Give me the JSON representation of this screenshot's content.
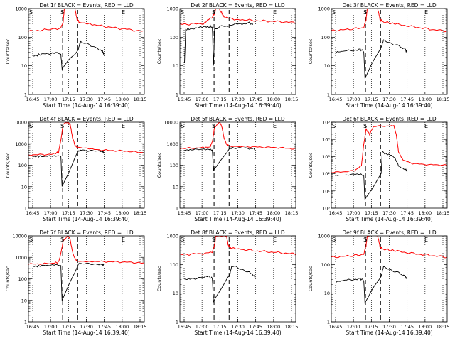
{
  "chart_data": [
    {
      "type": "line",
      "title": "Det 1f BLACK = Events, RED = LLD",
      "ylabel": "Counts/sec",
      "xlabel": "Start Time (14-Aug-14 16:39:40)",
      "y_scale": "log",
      "ylim": [
        1,
        1000
      ],
      "y_ticks": [
        1,
        10,
        100,
        1000
      ],
      "y_tick_labels": [
        "1",
        "10",
        "100",
        "1000"
      ],
      "x_ticks": [
        "16:45",
        "17:00",
        "17:15",
        "17:30",
        "17:45",
        "18:00",
        "18:15"
      ],
      "x_range_minutes": [
        0,
        100
      ],
      "markers": [
        "S",
        "E"
      ],
      "red": [
        [
          0,
          160
        ],
        [
          10,
          175
        ],
        [
          20,
          190
        ],
        [
          28,
          210
        ],
        [
          30,
          350
        ],
        [
          31,
          1000
        ],
        [
          40,
          1000
        ],
        [
          42,
          420
        ],
        [
          44,
          330
        ],
        [
          55,
          280
        ],
        [
          65,
          240
        ],
        [
          75,
          210
        ],
        [
          85,
          190
        ],
        [
          95,
          165
        ],
        [
          100,
          160
        ]
      ],
      "black": [
        [
          4,
          22
        ],
        [
          10,
          25
        ],
        [
          18,
          26
        ],
        [
          25,
          28
        ],
        [
          28,
          25
        ],
        [
          29,
          8
        ],
        [
          43,
          38
        ],
        [
          45,
          70
        ],
        [
          50,
          58
        ],
        [
          55,
          50
        ],
        [
          60,
          40
        ],
        [
          64,
          32
        ],
        [
          65,
          25
        ]
      ]
    },
    {
      "type": "line",
      "title": "Det 2f BLACK = Events, RED = LLD",
      "ylabel": "Counts/sec",
      "xlabel": "Start Time (14-Aug-14 16:39:40)",
      "y_scale": "log",
      "ylim": [
        1,
        1000
      ],
      "y_ticks": [
        1,
        10,
        100,
        1000
      ],
      "y_tick_labels": [
        "1",
        "10",
        "100",
        "1000"
      ],
      "x_ticks": [
        "16:45",
        "17:00",
        "17:15",
        "17:30",
        "17:45",
        "18:00",
        "18:15"
      ],
      "x_range_minutes": [
        0,
        100
      ],
      "markers": [
        "S",
        "E"
      ],
      "red": [
        [
          0,
          280
        ],
        [
          10,
          290
        ],
        [
          20,
          300
        ],
        [
          24,
          380
        ],
        [
          28,
          480
        ],
        [
          30,
          700
        ],
        [
          31,
          1000
        ],
        [
          34,
          1000
        ],
        [
          36,
          700
        ],
        [
          38,
          520
        ],
        [
          42,
          450
        ],
        [
          50,
          420
        ],
        [
          60,
          390
        ],
        [
          70,
          370
        ],
        [
          80,
          360
        ],
        [
          90,
          340
        ],
        [
          100,
          320
        ]
      ],
      "black": [
        [
          4,
          12
        ],
        [
          5,
          180
        ],
        [
          8,
          200
        ],
        [
          15,
          210
        ],
        [
          22,
          230
        ],
        [
          26,
          240
        ],
        [
          28,
          220
        ],
        [
          29,
          10
        ],
        [
          30,
          200
        ],
        [
          35,
          230
        ],
        [
          40,
          250
        ],
        [
          48,
          280
        ],
        [
          55,
          300
        ],
        [
          60,
          310
        ],
        [
          63,
          290
        ]
      ]
    },
    {
      "type": "line",
      "title": "Det 3f BLACK = Events, RED = LLD",
      "ylabel": "Counts/sec",
      "xlabel": "Start Time (14-Aug-14 16:39:40)",
      "y_scale": "log",
      "ylim": [
        1,
        1000
      ],
      "y_ticks": [
        1,
        10,
        100,
        1000
      ],
      "y_tick_labels": [
        "1",
        "10",
        "100",
        "1000"
      ],
      "x_ticks": [
        "16:45",
        "17:00",
        "17:15",
        "17:30",
        "17:45",
        "18:00",
        "18:15"
      ],
      "x_range_minutes": [
        0,
        100
      ],
      "markers": [
        "S",
        "E"
      ],
      "red": [
        [
          0,
          170
        ],
        [
          10,
          180
        ],
        [
          20,
          200
        ],
        [
          28,
          220
        ],
        [
          30,
          400
        ],
        [
          31,
          1000
        ],
        [
          40,
          1000
        ],
        [
          42,
          420
        ],
        [
          44,
          350
        ],
        [
          55,
          290
        ],
        [
          65,
          250
        ],
        [
          75,
          220
        ],
        [
          85,
          190
        ],
        [
          95,
          170
        ],
        [
          100,
          165
        ]
      ],
      "black": [
        [
          4,
          30
        ],
        [
          10,
          32
        ],
        [
          18,
          35
        ],
        [
          25,
          38
        ],
        [
          28,
          32
        ],
        [
          29,
          4
        ],
        [
          43,
          45
        ],
        [
          45,
          75
        ],
        [
          50,
          65
        ],
        [
          55,
          55
        ],
        [
          60,
          45
        ],
        [
          64,
          38
        ],
        [
          65,
          30
        ]
      ]
    },
    {
      "type": "line",
      "title": "Det 4f BLACK = Events, RED = LLD",
      "ylabel": "Counts/sec",
      "xlabel": "Start Time (14-Aug-14 16:39:40)",
      "y_scale": "log",
      "ylim": [
        1,
        10000
      ],
      "y_ticks": [
        1,
        10,
        100,
        1000,
        10000
      ],
      "y_tick_labels": [
        "1",
        "10",
        "100",
        "1000",
        "10000"
      ],
      "x_ticks": [
        "16:45",
        "17:00",
        "17:15",
        "17:30",
        "17:45",
        "18:00",
        "18:15"
      ],
      "x_range_minutes": [
        0,
        100
      ],
      "markers": [
        "S",
        "E"
      ],
      "red": [
        [
          0,
          300
        ],
        [
          10,
          310
        ],
        [
          20,
          320
        ],
        [
          26,
          400
        ],
        [
          28,
          1500
        ],
        [
          30,
          8000
        ],
        [
          34,
          10000
        ],
        [
          36,
          8000
        ],
        [
          38,
          2000
        ],
        [
          40,
          900
        ],
        [
          42,
          650
        ],
        [
          55,
          550
        ],
        [
          65,
          500
        ],
        [
          75,
          470
        ],
        [
          85,
          450
        ],
        [
          95,
          400
        ],
        [
          100,
          380
        ]
      ],
      "black": [
        [
          4,
          250
        ],
        [
          10,
          260
        ],
        [
          18,
          270
        ],
        [
          25,
          280
        ],
        [
          28,
          260
        ],
        [
          29,
          10
        ],
        [
          43,
          450
        ],
        [
          45,
          500
        ],
        [
          50,
          480
        ],
        [
          55,
          460
        ],
        [
          60,
          450
        ],
        [
          64,
          430
        ],
        [
          65,
          400
        ]
      ]
    },
    {
      "type": "line",
      "title": "Det 5f BLACK = Events, RED = LLD",
      "ylabel": "Counts/sec",
      "xlabel": "Start Time (14-Aug-14 16:39:40)",
      "y_scale": "log",
      "ylim": [
        1,
        10000
      ],
      "y_ticks": [
        1,
        10,
        100,
        1000,
        10000
      ],
      "y_tick_labels": [
        "1",
        "10",
        "100",
        "1000",
        "10000"
      ],
      "x_ticks": [
        "16:45",
        "17:00",
        "17:15",
        "17:30",
        "17:45",
        "18:00",
        "18:15"
      ],
      "x_range_minutes": [
        0,
        100
      ],
      "markers": [
        "S",
        "E"
      ],
      "red": [
        [
          0,
          600
        ],
        [
          10,
          620
        ],
        [
          20,
          650
        ],
        [
          26,
          700
        ],
        [
          28,
          1200
        ],
        [
          30,
          6000
        ],
        [
          34,
          10000
        ],
        [
          36,
          7000
        ],
        [
          38,
          2000
        ],
        [
          40,
          1000
        ],
        [
          42,
          800
        ],
        [
          55,
          750
        ],
        [
          65,
          700
        ],
        [
          75,
          680
        ],
        [
          85,
          650
        ],
        [
          95,
          600
        ],
        [
          100,
          580
        ]
      ],
      "black": [
        [
          4,
          500
        ],
        [
          10,
          520
        ],
        [
          18,
          540
        ],
        [
          25,
          560
        ],
        [
          28,
          500
        ],
        [
          29,
          60
        ],
        [
          43,
          600
        ],
        [
          45,
          650
        ],
        [
          50,
          640
        ],
        [
          55,
          620
        ],
        [
          60,
          600
        ],
        [
          64,
          580
        ],
        [
          65,
          550
        ]
      ]
    },
    {
      "type": "line",
      "title": "Det 6f BLACK = Events, RED = LLD",
      "ylabel": "Counts/sec",
      "xlabel": "Start Time (14-Aug-14 16:39:40)",
      "y_scale": "log",
      "ylim": [
        1,
        100000
      ],
      "y_ticks": [
        1,
        10,
        100,
        1000,
        10000,
        100000
      ],
      "y_tick_labels": [
        "10⁰",
        "10¹",
        "10²",
        "10³",
        "10⁴",
        "10⁵"
      ],
      "x_ticks": [
        "16:45",
        "17:00",
        "17:15",
        "17:30",
        "17:45",
        "18:00",
        "18:15"
      ],
      "x_range_minutes": [
        0,
        100
      ],
      "markers": [
        "S",
        "E"
      ],
      "red": [
        [
          0,
          120
        ],
        [
          10,
          130
        ],
        [
          20,
          150
        ],
        [
          26,
          300
        ],
        [
          28,
          5000
        ],
        [
          30,
          40000
        ],
        [
          33,
          20000
        ],
        [
          36,
          50000
        ],
        [
          40,
          60000
        ],
        [
          50,
          60000
        ],
        [
          54,
          60000
        ],
        [
          56,
          20000
        ],
        [
          58,
          2000
        ],
        [
          62,
          600
        ],
        [
          70,
          400
        ],
        [
          80,
          350
        ],
        [
          90,
          330
        ],
        [
          100,
          320
        ]
      ],
      "black": [
        [
          4,
          80
        ],
        [
          10,
          85
        ],
        [
          18,
          90
        ],
        [
          25,
          95
        ],
        [
          28,
          80
        ],
        [
          29,
          3
        ],
        [
          43,
          100
        ],
        [
          44,
          2000
        ],
        [
          46,
          1500
        ],
        [
          52,
          1200
        ],
        [
          55,
          800
        ],
        [
          58,
          300
        ],
        [
          62,
          200
        ],
        [
          64,
          180
        ],
        [
          65,
          160
        ]
      ]
    },
    {
      "type": "line",
      "title": "Det 7f BLACK = Events, RED = LLD",
      "ylabel": "Counts/sec",
      "xlabel": "Start Time (14-Aug-14 16:39:40)",
      "y_scale": "log",
      "ylim": [
        1,
        10000
      ],
      "y_ticks": [
        1,
        10,
        100,
        1000,
        10000
      ],
      "y_tick_labels": [
        "1",
        "10",
        "100",
        "1000",
        "10000"
      ],
      "x_ticks": [
        "16:45",
        "17:00",
        "17:15",
        "17:30",
        "17:45",
        "18:00",
        "18:15"
      ],
      "x_range_minutes": [
        0,
        100
      ],
      "markers": [
        "S",
        "E"
      ],
      "red": [
        [
          0,
          480
        ],
        [
          10,
          500
        ],
        [
          20,
          520
        ],
        [
          26,
          600
        ],
        [
          28,
          1500
        ],
        [
          30,
          6000
        ],
        [
          34,
          10000
        ],
        [
          36,
          7000
        ],
        [
          38,
          1800
        ],
        [
          40,
          900
        ],
        [
          42,
          700
        ],
        [
          55,
          650
        ],
        [
          65,
          630
        ],
        [
          75,
          620
        ],
        [
          85,
          600
        ],
        [
          95,
          560
        ],
        [
          100,
          520
        ]
      ],
      "black": [
        [
          4,
          380
        ],
        [
          10,
          400
        ],
        [
          18,
          420
        ],
        [
          25,
          440
        ],
        [
          28,
          400
        ],
        [
          29,
          10
        ],
        [
          43,
          480
        ],
        [
          45,
          520
        ],
        [
          50,
          500
        ],
        [
          55,
          490
        ],
        [
          60,
          480
        ],
        [
          64,
          460
        ],
        [
          65,
          440
        ]
      ]
    },
    {
      "type": "line",
      "title": "Det 8f BLACK = Events, RED = LLD",
      "ylabel": "Counts/sec",
      "xlabel": "Start Time (14-Aug-14 16:39:40)",
      "y_scale": "log",
      "ylim": [
        1,
        1000
      ],
      "y_ticks": [
        1,
        10,
        100,
        1000
      ],
      "y_tick_labels": [
        "1",
        "10",
        "100",
        "1000"
      ],
      "x_ticks": [
        "16:45",
        "17:00",
        "17:15",
        "17:30",
        "17:45",
        "18:00",
        "18:15"
      ],
      "x_range_minutes": [
        0,
        100
      ],
      "markers": [
        "S",
        "E"
      ],
      "red": [
        [
          0,
          220
        ],
        [
          10,
          230
        ],
        [
          20,
          240
        ],
        [
          28,
          260
        ],
        [
          30,
          500
        ],
        [
          31,
          1000
        ],
        [
          40,
          1000
        ],
        [
          42,
          450
        ],
        [
          44,
          380
        ],
        [
          55,
          330
        ],
        [
          65,
          300
        ],
        [
          75,
          280
        ],
        [
          85,
          260
        ],
        [
          95,
          240
        ],
        [
          100,
          230
        ]
      ],
      "black": [
        [
          4,
          30
        ],
        [
          10,
          32
        ],
        [
          18,
          35
        ],
        [
          25,
          38
        ],
        [
          28,
          32
        ],
        [
          29,
          5
        ],
        [
          43,
          45
        ],
        [
          45,
          90
        ],
        [
          50,
          75
        ],
        [
          55,
          65
        ],
        [
          60,
          52
        ],
        [
          64,
          42
        ],
        [
          65,
          35
        ]
      ]
    },
    {
      "type": "line",
      "title": "Det 9f BLACK = Events, RED = LLD",
      "ylabel": "Counts/sec",
      "xlabel": "Start Time (14-Aug-14 16:39:40)",
      "y_scale": "log",
      "ylim": [
        1,
        1000
      ],
      "y_ticks": [
        1,
        10,
        100,
        1000
      ],
      "y_tick_labels": [
        "1",
        "10",
        "100",
        "1000"
      ],
      "x_ticks": [
        "16:45",
        "17:00",
        "17:15",
        "17:30",
        "17:45",
        "18:00",
        "18:15"
      ],
      "x_range_minutes": [
        0,
        100
      ],
      "markers": [
        "S",
        "E"
      ],
      "red": [
        [
          0,
          180
        ],
        [
          10,
          190
        ],
        [
          20,
          210
        ],
        [
          28,
          230
        ],
        [
          30,
          450
        ],
        [
          31,
          1000
        ],
        [
          40,
          1000
        ],
        [
          42,
          420
        ],
        [
          44,
          350
        ],
        [
          55,
          300
        ],
        [
          65,
          260
        ],
        [
          75,
          230
        ],
        [
          85,
          210
        ],
        [
          95,
          190
        ],
        [
          100,
          180
        ]
      ],
      "black": [
        [
          4,
          25
        ],
        [
          10,
          27
        ],
        [
          18,
          30
        ],
        [
          25,
          32
        ],
        [
          28,
          28
        ],
        [
          29,
          5
        ],
        [
          43,
          40
        ],
        [
          45,
          80
        ],
        [
          50,
          68
        ],
        [
          55,
          58
        ],
        [
          60,
          46
        ],
        [
          64,
          38
        ],
        [
          65,
          32
        ]
      ]
    }
  ],
  "colors": {
    "events": "#000000",
    "lld": "#ff0000",
    "axis": "#000000",
    "background": "#ffffff"
  }
}
